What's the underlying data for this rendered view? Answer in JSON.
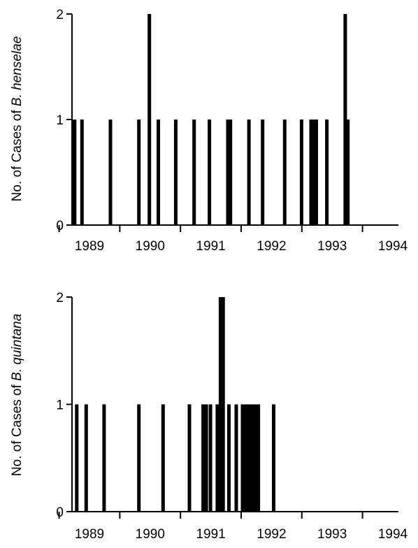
{
  "chart_data": [
    {
      "type": "bar",
      "ylabel": "No. of Cases of B. henselae",
      "ylabel_prefix": "No. of Cases of ",
      "ylabel_species": "B. henselae",
      "ylim": [
        0,
        2
      ],
      "yticks": [
        "0",
        "1",
        "2"
      ],
      "x_domain": [
        1988.6,
        1994.8
      ],
      "year_labels": [
        "1989",
        "1990",
        "1991",
        "1992",
        "1993",
        "1994"
      ],
      "grid": false,
      "bars": [
        {
          "x": 1988.63,
          "value": 1
        },
        {
          "x": 1988.65,
          "value": 1
        },
        {
          "x": 1988.79,
          "value": 1
        },
        {
          "x": 1989.33,
          "value": 1
        },
        {
          "x": 1989.87,
          "value": 1
        },
        {
          "x": 1990.07,
          "value": 2
        },
        {
          "x": 1990.24,
          "value": 1
        },
        {
          "x": 1990.57,
          "value": 1
        },
        {
          "x": 1990.92,
          "value": 1
        },
        {
          "x": 1991.21,
          "value": 1
        },
        {
          "x": 1991.56,
          "value": 1
        },
        {
          "x": 1991.61,
          "value": 1
        },
        {
          "x": 1991.96,
          "value": 1
        },
        {
          "x": 1992.22,
          "value": 1
        },
        {
          "x": 1992.64,
          "value": 1
        },
        {
          "x": 1992.96,
          "value": 1
        },
        {
          "x": 1993.14,
          "value": 1
        },
        {
          "x": 1993.19,
          "value": 1
        },
        {
          "x": 1993.24,
          "value": 1
        },
        {
          "x": 1993.44,
          "value": 1
        },
        {
          "x": 1993.79,
          "value": 2
        },
        {
          "x": 1993.84,
          "value": 1
        }
      ]
    },
    {
      "type": "bar",
      "ylabel": "No. of Cases of B. quintana",
      "ylabel_prefix": "No. of Cases of ",
      "ylabel_species": "B. quintana",
      "ylim": [
        0,
        2
      ],
      "yticks": [
        "0",
        "1",
        "2"
      ],
      "x_domain": [
        1988.6,
        1994.8
      ],
      "year_labels": [
        "1989",
        "1990",
        "1991",
        "1992",
        "1993",
        "1994"
      ],
      "grid": false,
      "bars": [
        {
          "x": 1988.69,
          "value": 1
        },
        {
          "x": 1988.87,
          "value": 1
        },
        {
          "x": 1989.21,
          "value": 1
        },
        {
          "x": 1989.87,
          "value": 1
        },
        {
          "x": 1990.33,
          "value": 1
        },
        {
          "x": 1990.83,
          "value": 1
        },
        {
          "x": 1991.09,
          "value": 1
        },
        {
          "x": 1991.15,
          "value": 1
        },
        {
          "x": 1991.23,
          "value": 1
        },
        {
          "x": 1991.36,
          "value": 1
        },
        {
          "x": 1991.42,
          "value": 2
        },
        {
          "x": 1991.47,
          "value": 2
        },
        {
          "x": 1991.58,
          "value": 1
        },
        {
          "x": 1991.72,
          "value": 1
        },
        {
          "x": 1991.84,
          "value": 1
        },
        {
          "x": 1991.9,
          "value": 1
        },
        {
          "x": 1991.96,
          "value": 1
        },
        {
          "x": 1992.02,
          "value": 1
        },
        {
          "x": 1992.08,
          "value": 1
        },
        {
          "x": 1992.14,
          "value": 1
        },
        {
          "x": 1992.43,
          "value": 1
        }
      ]
    }
  ]
}
